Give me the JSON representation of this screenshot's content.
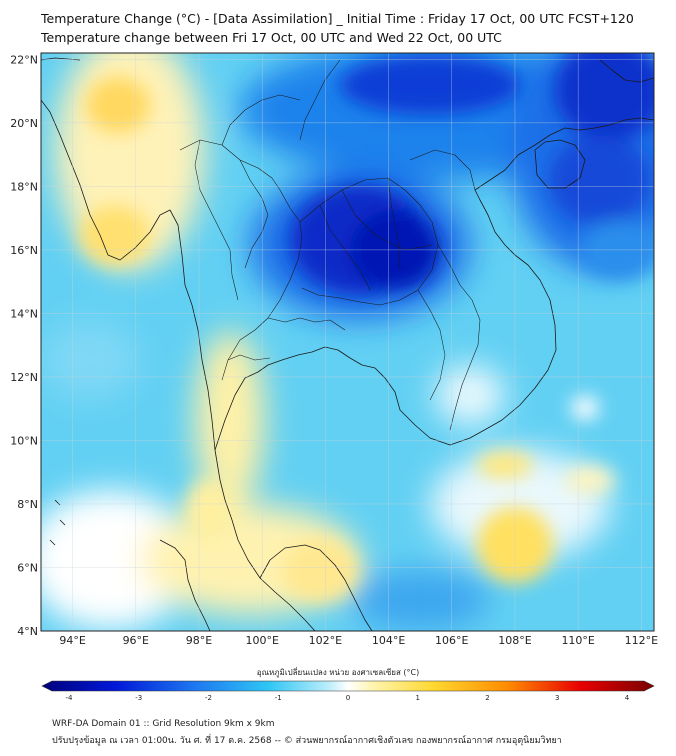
{
  "header": {
    "title_line1": "Temperature Change (°C) - [Data Assimilation] _ Initial Time : Friday 17 Oct, 00 UTC FCST+120",
    "title_line2": "Temperature change between Fri 17 Oct, 00 UTC and Wed 22 Oct, 00 UTC"
  },
  "map": {
    "lon_labels": [
      "94°E",
      "96°E",
      "98°E",
      "100°E",
      "102°E",
      "104°E",
      "106°E",
      "108°E",
      "110°E",
      "112°E"
    ],
    "lon_values": [
      94,
      96,
      98,
      100,
      102,
      104,
      106,
      108,
      110,
      112
    ],
    "lat_labels": [
      "4°N",
      "6°N",
      "8°N",
      "10°N",
      "12°N",
      "14°N",
      "16°N",
      "18°N",
      "20°N",
      "22°N"
    ],
    "lat_values": [
      4,
      6,
      8,
      10,
      12,
      14,
      16,
      18,
      20,
      22
    ],
    "lon_range": [
      93.0,
      112.4
    ],
    "lat_range": [
      4.0,
      22.2
    ]
  },
  "colorbar": {
    "title": "อุณหภูมิเปลี่ยนแปลง หน่วย องศาเซลเซียส (°C)",
    "tick_labels": [
      "-4",
      "-3",
      "-2",
      "-1",
      "0",
      "1",
      "2",
      "3",
      "4"
    ],
    "tick_values": [
      -4,
      -3,
      -2,
      -1,
      0,
      1,
      2,
      3,
      4
    ],
    "range": [
      -4,
      4
    ],
    "colors": [
      "#00007a",
      "#0018d8",
      "#1e78f0",
      "#2fc6f4",
      "#bfeefb",
      "#ffffff",
      "#fff5b0",
      "#ffd830",
      "#ff8c00",
      "#e80000",
      "#7a0000"
    ]
  },
  "footer": {
    "line1": "WRF-DA Domain 01 :: Grid Resolution 9km x 9km",
    "line2": "ปรับปรุงข้อมูล ณ เวลา 01:00น. วัน ศ. ที่ 17 ต.ค. 2568 -- © ส่วนพยากรณ์อากาศเชิงตัวเลข กองพยากรณ์อากาศ กรมอุตุนิยมวิทยา"
  }
}
